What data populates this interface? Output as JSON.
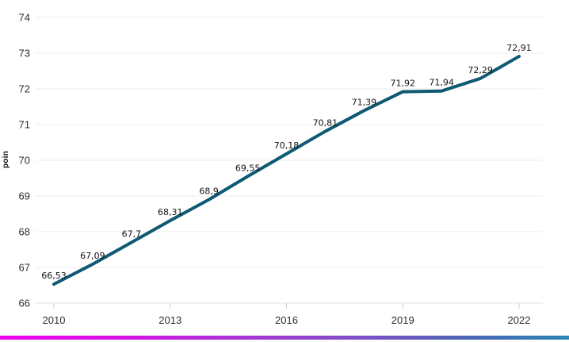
{
  "chart_data": {
    "type": "line",
    "title": "",
    "xlabel": "",
    "ylabel": "poin",
    "x": [
      2010,
      2011,
      2012,
      2013,
      2014,
      2015,
      2016,
      2017,
      2018,
      2019,
      2020,
      2021,
      2022
    ],
    "values": [
      66.53,
      67.09,
      67.7,
      68.31,
      68.9,
      69.55,
      70.18,
      70.81,
      71.39,
      71.92,
      71.94,
      72.29,
      72.91
    ],
    "point_labels": [
      "66,53",
      "67,09",
      "67,7",
      "68,31",
      "68,9",
      "69,55",
      "70,18",
      "70,81",
      "71,39",
      "71,92",
      "71,94",
      "72,29",
      "72,91"
    ],
    "xtick_labels": [
      "2010",
      "2013",
      "2016",
      "2019",
      "2022"
    ],
    "xticks": [
      2010,
      2013,
      2016,
      2019,
      2022
    ],
    "yticks": [
      66,
      67,
      68,
      69,
      70,
      71,
      72,
      73,
      74
    ],
    "ylim": [
      66,
      74
    ],
    "xlim": [
      2010,
      2022
    ],
    "grid": true,
    "legend": false,
    "decimal_separator": ",",
    "colors": {
      "line": "#0f5a73",
      "grid": "#ededed",
      "axis_line": "#e0e0e0",
      "tick": "#cccccc",
      "axis_text": "#2e2e2e",
      "data_label_text": "#141414",
      "background": "#ffffff",
      "footer_gradient": [
        "#ee00ee",
        "#a437d4",
        "#2d83b5"
      ]
    }
  }
}
